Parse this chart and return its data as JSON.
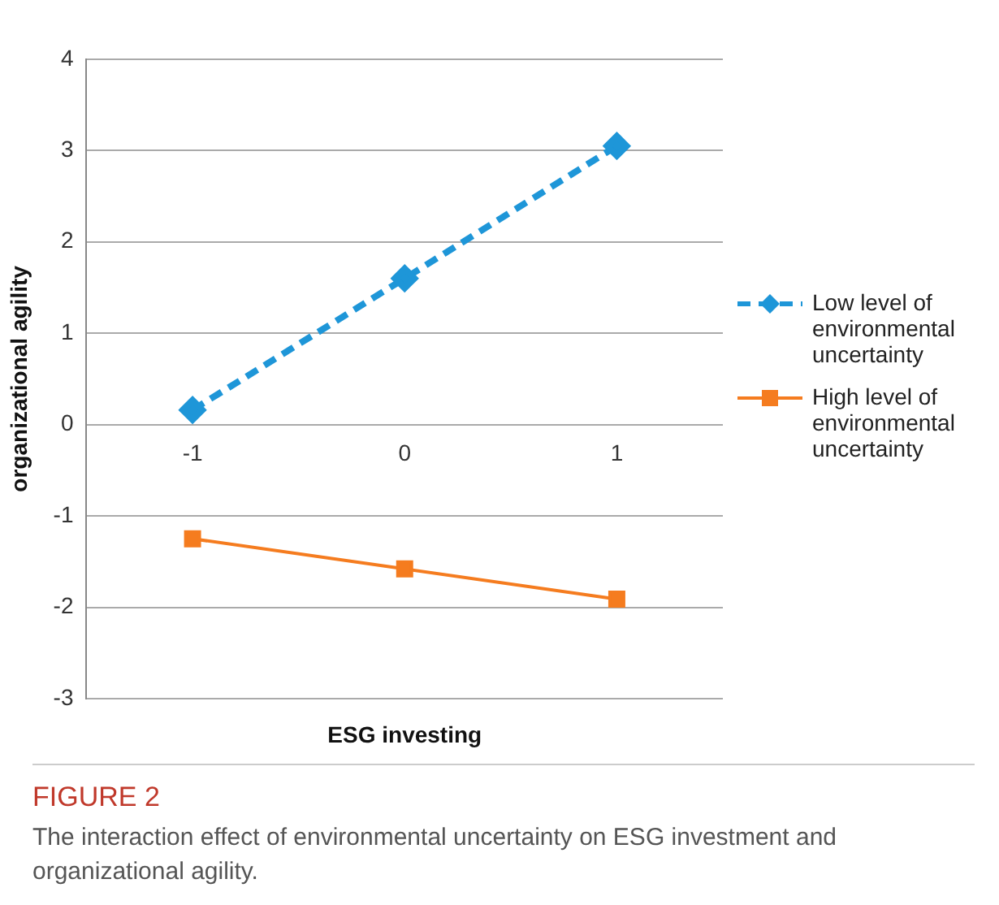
{
  "chart_data": {
    "type": "line",
    "xlabel": "ESG investing",
    "ylabel": "organizational agility",
    "categories": [
      "-1",
      "0",
      "1"
    ],
    "series": [
      {
        "name": "Low level of environmental uncertainty",
        "color": "#1e96d8",
        "values": [
          0.16,
          1.6,
          3.05
        ],
        "marker": "diamond",
        "line_style": "dashed"
      },
      {
        "name": "High level of environmental uncertainty",
        "color": "#f57c1f",
        "values": [
          -1.25,
          -1.58,
          -1.91
        ],
        "marker": "square",
        "line_style": "solid"
      }
    ],
    "ylim": [
      -3,
      4
    ],
    "yticks": [
      -3,
      -2,
      -1,
      0,
      1,
      2,
      3,
      4
    ],
    "grid": "y",
    "legend": "right",
    "annotations": [
      "FIGURE 2",
      "The interaction effect of environmental uncertainty on ESG investment and organizational agility."
    ]
  }
}
